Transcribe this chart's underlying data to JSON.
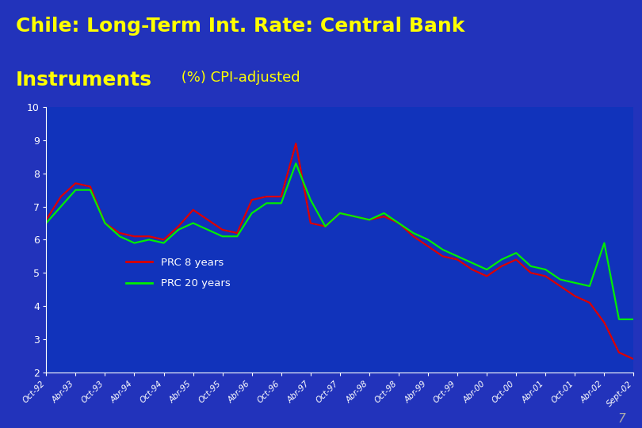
{
  "title_line1": "Chile: Long-Term Int. Rate: Central Bank",
  "title_line2_bold": "Instruments",
  "title_line2_normal": " (%) CPI-adjusted",
  "title_color": "#FFFF00",
  "title_fontsize_big": 18,
  "title_fontsize_small": 13,
  "background_outer": "#2233bb",
  "background_plot": "#1133bb",
  "background_title": "#1a2ecc",
  "text_color": "#ffffff",
  "ylim": [
    2,
    10
  ],
  "yticks": [
    2,
    3,
    4,
    5,
    6,
    7,
    8,
    9,
    10
  ],
  "legend_labels": [
    "PRC 8 years",
    "PRC 20 years"
  ],
  "legend_colors": [
    "#dd0000",
    "#00ee00"
  ],
  "x_labels": [
    "Oct-92",
    "Abr-93",
    "Oct-93",
    "Abr-94",
    "Oct-94",
    "Abr-95",
    "Oct-95",
    "Abr-96",
    "Oct-96",
    "Abr-97",
    "Oct-97",
    "Abr-98",
    "Oct-98",
    "Abr-99",
    "Oct-99",
    "Abr-00",
    "Oct-00",
    "Abr-01",
    "Oct-01",
    "Abr-02",
    "Sept-02"
  ],
  "prc8": [
    6.6,
    7.3,
    7.7,
    7.6,
    6.5,
    6.2,
    6.1,
    6.1,
    6.0,
    6.4,
    6.9,
    6.6,
    6.3,
    6.2,
    7.2,
    7.3,
    7.3,
    8.9,
    6.5,
    6.4,
    6.8,
    6.7,
    6.6,
    6.7,
    6.5,
    6.1,
    5.8,
    5.5,
    5.4,
    5.1,
    4.9,
    5.2,
    5.4,
    5.0,
    4.9,
    4.6,
    4.3,
    4.1,
    3.5,
    2.6,
    2.4
  ],
  "prc20": [
    6.5,
    7.0,
    7.5,
    7.5,
    6.5,
    6.1,
    5.9,
    6.0,
    5.9,
    6.3,
    6.5,
    6.3,
    6.1,
    6.1,
    6.8,
    7.1,
    7.1,
    8.3,
    7.2,
    6.4,
    6.8,
    6.7,
    6.6,
    6.8,
    6.5,
    6.2,
    6.0,
    5.7,
    5.5,
    5.3,
    5.1,
    5.4,
    5.6,
    5.2,
    5.1,
    4.8,
    4.7,
    4.6,
    5.9,
    3.6,
    3.6
  ],
  "footer_num": "7",
  "footer_color": "#aaaaaa"
}
